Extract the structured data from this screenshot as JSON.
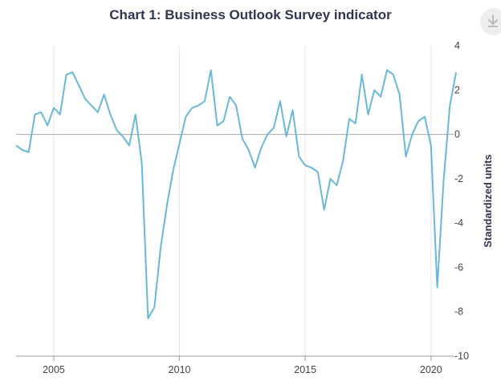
{
  "title": "Chart 1: Business Outlook Survey indicator",
  "download_icon": "download-icon",
  "chart_data": {
    "type": "line",
    "title": "Chart 1: Business Outlook Survey indicator",
    "xlabel": "",
    "ylabel": "Standardized units",
    "ylim": [
      -10,
      4
    ],
    "yticks": [
      4,
      2,
      0,
      -2,
      -4,
      -6,
      -8,
      -10
    ],
    "xticks": [
      2005,
      2010,
      2015,
      2020
    ],
    "xlim": [
      2003.5,
      2020.9
    ],
    "grid": "vertical",
    "zero_line": true,
    "y_axis_position": "right",
    "series": [
      {
        "color": "#6ab8d8",
        "x": [
          2003.5,
          2003.75,
          2004.0,
          2004.25,
          2004.5,
          2004.75,
          2005.0,
          2005.25,
          2005.5,
          2005.75,
          2006.0,
          2006.25,
          2006.5,
          2006.75,
          2007.0,
          2007.25,
          2007.5,
          2007.75,
          2008.0,
          2008.25,
          2008.5,
          2008.75,
          2009.0,
          2009.25,
          2009.5,
          2009.75,
          2010.0,
          2010.25,
          2010.5,
          2010.75,
          2011.0,
          2011.25,
          2011.5,
          2011.75,
          2012.0,
          2012.25,
          2012.5,
          2012.75,
          2013.0,
          2013.25,
          2013.5,
          2013.75,
          2014.0,
          2014.25,
          2014.5,
          2014.75,
          2015.0,
          2015.25,
          2015.5,
          2015.75,
          2016.0,
          2016.25,
          2016.5,
          2016.75,
          2017.0,
          2017.25,
          2017.5,
          2017.75,
          2018.0,
          2018.25,
          2018.5,
          2018.75,
          2019.0,
          2019.25,
          2019.5,
          2019.75,
          2020.0,
          2020.25,
          2020.5,
          2020.75,
          2021.0
        ],
        "values": [
          -0.5,
          -0.7,
          -0.8,
          0.9,
          1.0,
          0.4,
          1.2,
          0.9,
          2.7,
          2.8,
          2.2,
          1.6,
          1.3,
          1.0,
          1.8,
          0.9,
          0.2,
          -0.1,
          -0.5,
          0.9,
          -1.3,
          -8.3,
          -7.8,
          -5.1,
          -3.2,
          -1.6,
          -0.4,
          0.8,
          1.2,
          1.3,
          1.5,
          2.9,
          0.4,
          0.6,
          1.7,
          1.3,
          -0.2,
          -0.7,
          -1.5,
          -0.6,
          0.0,
          0.3,
          1.5,
          -0.1,
          1.1,
          -1.0,
          -1.4,
          -1.5,
          -1.7,
          -3.4,
          -2.0,
          -2.3,
          -1.2,
          0.7,
          0.5,
          2.7,
          0.9,
          2.0,
          1.7,
          2.9,
          2.7,
          1.8,
          -1.0,
          0.0,
          0.6,
          0.8,
          -0.5,
          -6.9,
          -2.1,
          1.3,
          2.8
        ]
      }
    ]
  }
}
